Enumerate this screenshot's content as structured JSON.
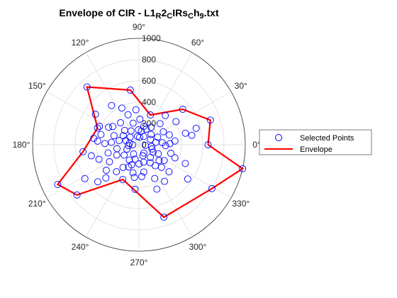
{
  "chart_data": {
    "type": "polar-scatter-line",
    "title": {
      "main": "Envelope of CIR - L1",
      "parts": [
        {
          "text": "Envelope of CIR - L1",
          "sub": false
        },
        {
          "text": "R",
          "sub": true
        },
        {
          "text": "2",
          "sub": false
        },
        {
          "text": "C",
          "sub": true
        },
        {
          "text": "IRs",
          "sub": false
        },
        {
          "text": "C",
          "sub": true
        },
        {
          "text": "h",
          "sub": false
        },
        {
          "text": "9",
          "sub": true
        },
        {
          "text": ".txt",
          "sub": false
        }
      ]
    },
    "rlim": [
      0,
      1000
    ],
    "rticks": [
      0,
      200,
      400,
      600,
      800,
      1000
    ],
    "rtick_labels": [
      "0",
      "200",
      "400",
      "600",
      "800",
      "1000"
    ],
    "thetaticks_deg": [
      0,
      30,
      60,
      90,
      120,
      150,
      180,
      210,
      240,
      270,
      300,
      330
    ],
    "thetatick_labels": [
      "0°",
      "30°",
      "60°",
      "90°",
      "120°",
      "150°",
      "180°",
      "210°",
      "240°",
      "270°",
      "300°",
      "330°"
    ],
    "grid": true,
    "legend": {
      "placement": "right",
      "entries": [
        "Selected Points",
        "Envelope"
      ]
    },
    "colors": {
      "points": "#0000ff",
      "envelope": "#ff0000",
      "grid": "#d9d9d9",
      "text": "#262626"
    },
    "series": [
      {
        "name": "Envelope",
        "style": "line",
        "points_deg_r": [
          [
            0,
            650
          ],
          [
            19,
            710
          ],
          [
            39,
            530
          ],
          [
            69,
            300
          ],
          [
            99,
            520
          ],
          [
            132,
            730
          ],
          [
            158,
            420
          ],
          [
            187,
            530
          ],
          [
            206,
            850
          ],
          [
            219,
            750
          ],
          [
            245,
            360
          ],
          [
            289,
            720
          ],
          [
            329,
            800
          ],
          [
            347,
            1000
          ],
          [
            0,
            650
          ]
        ]
      },
      {
        "name": "Selected Points",
        "style": "marker",
        "points_deg_r": [
          [
            19,
            710
          ],
          [
            39,
            530
          ],
          [
            69,
            300
          ],
          [
            99,
            520
          ],
          [
            132,
            730
          ],
          [
            158,
            420
          ],
          [
            187,
            530
          ],
          [
            206,
            850
          ],
          [
            219,
            750
          ],
          [
            245,
            360
          ],
          [
            289,
            720
          ],
          [
            329,
            800
          ],
          [
            347,
            1000
          ],
          [
            0,
            650
          ],
          [
            16,
            560
          ],
          [
            14,
            450
          ],
          [
            10,
            505
          ],
          [
            6,
            340
          ],
          [
            18,
            300
          ],
          [
            32,
            410
          ],
          [
            45,
            280
          ],
          [
            55,
            200
          ],
          [
            75,
            180
          ],
          [
            88,
            240
          ],
          [
            110,
            300
          ],
          [
            125,
            450
          ],
          [
            145,
            500
          ],
          [
            150,
            330
          ],
          [
            160,
            250
          ],
          [
            168,
            190
          ],
          [
            178,
            320
          ],
          [
            190,
            210
          ],
          [
            200,
            400
          ],
          [
            212,
            600
          ],
          [
            225,
            440
          ],
          [
            235,
            260
          ],
          [
            250,
            200
          ],
          [
            262,
            310
          ],
          [
            270,
            180
          ],
          [
            280,
            260
          ],
          [
            295,
            350
          ],
          [
            305,
            420
          ],
          [
            315,
            300
          ],
          [
            322,
            240
          ],
          [
            335,
            200
          ],
          [
            342,
            130
          ],
          [
            352,
            120
          ],
          [
            25,
            120
          ],
          [
            60,
            90
          ],
          [
            100,
            80
          ],
          [
            140,
            110
          ],
          [
            170,
            90
          ],
          [
            200,
            120
          ],
          [
            240,
            100
          ],
          [
            300,
            90
          ],
          [
            355,
            60
          ],
          [
            120,
            150
          ],
          [
            165,
            370
          ],
          [
            172,
            430
          ],
          [
            175,
            260
          ],
          [
            185,
            100
          ],
          [
            215,
            170
          ],
          [
            230,
            330
          ],
          [
            255,
            140
          ],
          [
            265,
            420
          ],
          [
            285,
            170
          ],
          [
            308,
            250
          ],
          [
            318,
            380
          ],
          [
            328,
            280
          ],
          [
            338,
            470
          ],
          [
            5,
            220
          ],
          [
            28,
            260
          ],
          [
            40,
            150
          ],
          [
            80,
            130
          ],
          [
            95,
            330
          ],
          [
            105,
            210
          ],
          [
            130,
            270
          ],
          [
            150,
            170
          ],
          [
            155,
            410
          ],
          [
            162,
            130
          ],
          [
            195,
            300
          ],
          [
            205,
            230
          ],
          [
            222,
            520
          ],
          [
            238,
            170
          ],
          [
            275,
            300
          ],
          [
            290,
            110
          ],
          [
            312,
            160
          ],
          [
            325,
            560
          ],
          [
            345,
            310
          ],
          [
            8,
            160
          ],
          [
            48,
            370
          ],
          [
            85,
            70
          ],
          [
            115,
            380
          ],
          [
            135,
            190
          ],
          [
            180,
            60
          ],
          [
            210,
            320
          ],
          [
            245,
            230
          ],
          [
            292,
            450
          ],
          [
            340,
            360
          ],
          [
            2,
            290
          ],
          [
            22,
            190
          ],
          [
            65,
            160
          ],
          [
            92,
            140
          ],
          [
            145,
            300
          ],
          [
            175,
            390
          ],
          [
            193,
            460
          ],
          [
            218,
            390
          ],
          [
            258,
            270
          ],
          [
            302,
            200
          ],
          [
            332,
            150
          ],
          [
            358,
            250
          ]
        ]
      }
    ]
  }
}
